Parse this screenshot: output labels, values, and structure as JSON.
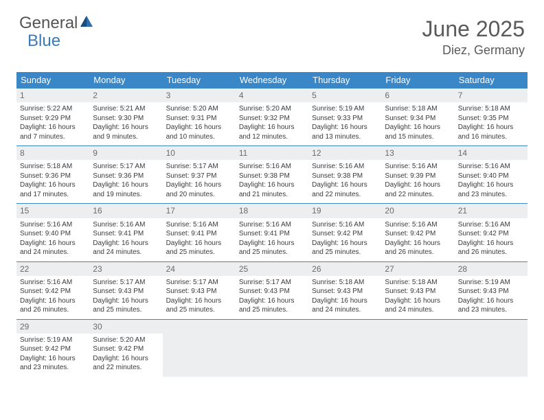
{
  "brand": {
    "part1": "General",
    "part2": "Blue"
  },
  "title": {
    "month_year": "June 2025",
    "location": "Diez, Germany"
  },
  "header_bg": "#3a87c7",
  "daynum_bg": "#eceeef",
  "weekdays": [
    "Sunday",
    "Monday",
    "Tuesday",
    "Wednesday",
    "Thursday",
    "Friday",
    "Saturday"
  ],
  "weeks": [
    [
      {
        "n": "1",
        "sr": "Sunrise: 5:22 AM",
        "ss": "Sunset: 9:29 PM",
        "dl": "Daylight: 16 hours and 7 minutes."
      },
      {
        "n": "2",
        "sr": "Sunrise: 5:21 AM",
        "ss": "Sunset: 9:30 PM",
        "dl": "Daylight: 16 hours and 9 minutes."
      },
      {
        "n": "3",
        "sr": "Sunrise: 5:20 AM",
        "ss": "Sunset: 9:31 PM",
        "dl": "Daylight: 16 hours and 10 minutes."
      },
      {
        "n": "4",
        "sr": "Sunrise: 5:20 AM",
        "ss": "Sunset: 9:32 PM",
        "dl": "Daylight: 16 hours and 12 minutes."
      },
      {
        "n": "5",
        "sr": "Sunrise: 5:19 AM",
        "ss": "Sunset: 9:33 PM",
        "dl": "Daylight: 16 hours and 13 minutes."
      },
      {
        "n": "6",
        "sr": "Sunrise: 5:18 AM",
        "ss": "Sunset: 9:34 PM",
        "dl": "Daylight: 16 hours and 15 minutes."
      },
      {
        "n": "7",
        "sr": "Sunrise: 5:18 AM",
        "ss": "Sunset: 9:35 PM",
        "dl": "Daylight: 16 hours and 16 minutes."
      }
    ],
    [
      {
        "n": "8",
        "sr": "Sunrise: 5:18 AM",
        "ss": "Sunset: 9:36 PM",
        "dl": "Daylight: 16 hours and 17 minutes."
      },
      {
        "n": "9",
        "sr": "Sunrise: 5:17 AM",
        "ss": "Sunset: 9:36 PM",
        "dl": "Daylight: 16 hours and 19 minutes."
      },
      {
        "n": "10",
        "sr": "Sunrise: 5:17 AM",
        "ss": "Sunset: 9:37 PM",
        "dl": "Daylight: 16 hours and 20 minutes."
      },
      {
        "n": "11",
        "sr": "Sunrise: 5:16 AM",
        "ss": "Sunset: 9:38 PM",
        "dl": "Daylight: 16 hours and 21 minutes."
      },
      {
        "n": "12",
        "sr": "Sunrise: 5:16 AM",
        "ss": "Sunset: 9:38 PM",
        "dl": "Daylight: 16 hours and 22 minutes."
      },
      {
        "n": "13",
        "sr": "Sunrise: 5:16 AM",
        "ss": "Sunset: 9:39 PM",
        "dl": "Daylight: 16 hours and 22 minutes."
      },
      {
        "n": "14",
        "sr": "Sunrise: 5:16 AM",
        "ss": "Sunset: 9:40 PM",
        "dl": "Daylight: 16 hours and 23 minutes."
      }
    ],
    [
      {
        "n": "15",
        "sr": "Sunrise: 5:16 AM",
        "ss": "Sunset: 9:40 PM",
        "dl": "Daylight: 16 hours and 24 minutes."
      },
      {
        "n": "16",
        "sr": "Sunrise: 5:16 AM",
        "ss": "Sunset: 9:41 PM",
        "dl": "Daylight: 16 hours and 24 minutes."
      },
      {
        "n": "17",
        "sr": "Sunrise: 5:16 AM",
        "ss": "Sunset: 9:41 PM",
        "dl": "Daylight: 16 hours and 25 minutes."
      },
      {
        "n": "18",
        "sr": "Sunrise: 5:16 AM",
        "ss": "Sunset: 9:41 PM",
        "dl": "Daylight: 16 hours and 25 minutes."
      },
      {
        "n": "19",
        "sr": "Sunrise: 5:16 AM",
        "ss": "Sunset: 9:42 PM",
        "dl": "Daylight: 16 hours and 25 minutes."
      },
      {
        "n": "20",
        "sr": "Sunrise: 5:16 AM",
        "ss": "Sunset: 9:42 PM",
        "dl": "Daylight: 16 hours and 26 minutes."
      },
      {
        "n": "21",
        "sr": "Sunrise: 5:16 AM",
        "ss": "Sunset: 9:42 PM",
        "dl": "Daylight: 16 hours and 26 minutes."
      }
    ],
    [
      {
        "n": "22",
        "sr": "Sunrise: 5:16 AM",
        "ss": "Sunset: 9:42 PM",
        "dl": "Daylight: 16 hours and 26 minutes."
      },
      {
        "n": "23",
        "sr": "Sunrise: 5:17 AM",
        "ss": "Sunset: 9:43 PM",
        "dl": "Daylight: 16 hours and 25 minutes."
      },
      {
        "n": "24",
        "sr": "Sunrise: 5:17 AM",
        "ss": "Sunset: 9:43 PM",
        "dl": "Daylight: 16 hours and 25 minutes."
      },
      {
        "n": "25",
        "sr": "Sunrise: 5:17 AM",
        "ss": "Sunset: 9:43 PM",
        "dl": "Daylight: 16 hours and 25 minutes."
      },
      {
        "n": "26",
        "sr": "Sunrise: 5:18 AM",
        "ss": "Sunset: 9:43 PM",
        "dl": "Daylight: 16 hours and 24 minutes."
      },
      {
        "n": "27",
        "sr": "Sunrise: 5:18 AM",
        "ss": "Sunset: 9:43 PM",
        "dl": "Daylight: 16 hours and 24 minutes."
      },
      {
        "n": "28",
        "sr": "Sunrise: 5:19 AM",
        "ss": "Sunset: 9:43 PM",
        "dl": "Daylight: 16 hours and 23 minutes."
      }
    ],
    [
      {
        "n": "29",
        "sr": "Sunrise: 5:19 AM",
        "ss": "Sunset: 9:42 PM",
        "dl": "Daylight: 16 hours and 23 minutes."
      },
      {
        "n": "30",
        "sr": "Sunrise: 5:20 AM",
        "ss": "Sunset: 9:42 PM",
        "dl": "Daylight: 16 hours and 22 minutes."
      },
      null,
      null,
      null,
      null,
      null
    ]
  ]
}
